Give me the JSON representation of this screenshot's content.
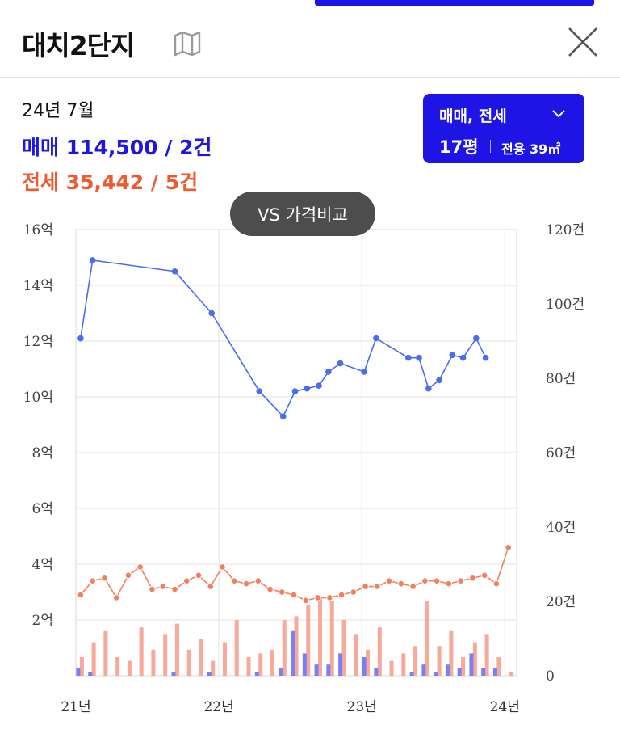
{
  "header": {
    "title": "대치2단지",
    "map_icon": "map-icon",
    "close_icon": "close-icon"
  },
  "summary": {
    "date": "24년 7월",
    "sale": "매매 114,500 / 2건",
    "jeonse": "전세 35,442 / 5건"
  },
  "filter": {
    "type": "매매, 전세",
    "pyeong": "17평",
    "area": "전용 39㎡"
  },
  "vs_button": "VS 가격비교",
  "colors": {
    "accent": "#1d14e6",
    "sale_line": "#4a6cf0",
    "jeonse_line": "#f08060",
    "jeonse_text": "#f0592e",
    "sale_bar": "#7b7ff5",
    "jeonse_bar": "#f7a99a"
  },
  "chart_data": {
    "type": "line",
    "x_unit": "month index from 21년 1월 (0–36)",
    "x_ticks": [
      {
        "x": 0,
        "label": "21년"
      },
      {
        "x": 12,
        "label": "22년"
      },
      {
        "x": 24,
        "label": "23년"
      },
      {
        "x": 36,
        "label": "24년"
      }
    ],
    "y_left": {
      "ticks": [
        "16억",
        "14억",
        "12억",
        "10억",
        "8억",
        "6억",
        "4억",
        "2억"
      ],
      "range": [
        0,
        16
      ]
    },
    "y_right": {
      "ticks": [
        "120건",
        "100건",
        "80건",
        "60건",
        "40건",
        "20건",
        "0"
      ],
      "range": [
        0,
        120
      ]
    },
    "series": [
      {
        "name": "매매",
        "values": [
          [
            0.4,
            12.1
          ],
          [
            1.4,
            14.9
          ],
          [
            8.3,
            14.5
          ],
          [
            11.4,
            13.0
          ],
          [
            15.4,
            10.2
          ],
          [
            17.4,
            9.3
          ],
          [
            18.4,
            10.2
          ],
          [
            19.4,
            10.3
          ],
          [
            20.4,
            10.4
          ],
          [
            21.2,
            10.9
          ],
          [
            22.2,
            11.2
          ],
          [
            24.2,
            10.9
          ],
          [
            25.2,
            12.1
          ],
          [
            27.9,
            11.4
          ],
          [
            28.8,
            11.4
          ],
          [
            29.6,
            10.3
          ],
          [
            30.5,
            10.6
          ],
          [
            31.6,
            11.5
          ],
          [
            32.5,
            11.4
          ],
          [
            33.6,
            12.1
          ],
          [
            34.4,
            11.4
          ]
        ]
      },
      {
        "name": "전세",
        "values": [
          [
            0.4,
            2.9
          ],
          [
            1.4,
            3.4
          ],
          [
            2.4,
            3.5
          ],
          [
            3.4,
            2.8
          ],
          [
            4.4,
            3.6
          ],
          [
            5.4,
            3.9
          ],
          [
            6.4,
            3.1
          ],
          [
            7.3,
            3.2
          ],
          [
            8.3,
            3.1
          ],
          [
            9.3,
            3.4
          ],
          [
            10.3,
            3.6
          ],
          [
            11.3,
            3.2
          ],
          [
            12.3,
            3.9
          ],
          [
            13.3,
            3.4
          ],
          [
            14.3,
            3.3
          ],
          [
            15.3,
            3.4
          ],
          [
            16.3,
            3.1
          ],
          [
            17.3,
            3.0
          ],
          [
            18.3,
            2.9
          ],
          [
            19.3,
            2.7
          ],
          [
            20.3,
            2.8
          ],
          [
            21.3,
            2.8
          ],
          [
            22.3,
            2.9
          ],
          [
            23.3,
            3.0
          ],
          [
            24.3,
            3.2
          ],
          [
            25.3,
            3.2
          ],
          [
            26.3,
            3.4
          ],
          [
            27.3,
            3.3
          ],
          [
            28.3,
            3.2
          ],
          [
            29.3,
            3.4
          ],
          [
            30.3,
            3.4
          ],
          [
            31.3,
            3.3
          ],
          [
            32.3,
            3.4
          ],
          [
            33.3,
            3.5
          ],
          [
            34.3,
            3.6
          ],
          [
            35.3,
            3.3
          ],
          [
            36.3,
            4.6
          ]
        ]
      }
    ],
    "bars_sale": [
      [
        0.2,
        2
      ],
      [
        1.2,
        1
      ],
      [
        8.2,
        1
      ],
      [
        11.2,
        1
      ],
      [
        15.2,
        1
      ],
      [
        17.2,
        2
      ],
      [
        18.2,
        12
      ],
      [
        19.2,
        6
      ],
      [
        20.2,
        3
      ],
      [
        21.2,
        3
      ],
      [
        22.2,
        6
      ],
      [
        24.2,
        5
      ],
      [
        25.2,
        2
      ],
      [
        28.2,
        1
      ],
      [
        29.2,
        3
      ],
      [
        30.2,
        1
      ],
      [
        31.2,
        3
      ],
      [
        32.2,
        2
      ],
      [
        33.2,
        6
      ],
      [
        34.2,
        2
      ],
      [
        35.2,
        2
      ]
    ],
    "bars_jeonse": [
      [
        0.5,
        5
      ],
      [
        1.5,
        9
      ],
      [
        2.5,
        12
      ],
      [
        3.5,
        5
      ],
      [
        4.5,
        4
      ],
      [
        5.5,
        13
      ],
      [
        6.5,
        7
      ],
      [
        7.5,
        11
      ],
      [
        8.5,
        14
      ],
      [
        9.5,
        7
      ],
      [
        10.5,
        10
      ],
      [
        11.5,
        4
      ],
      [
        12.5,
        9
      ],
      [
        13.5,
        15
      ],
      [
        14.5,
        5
      ],
      [
        15.5,
        6
      ],
      [
        16.5,
        7
      ],
      [
        17.5,
        15
      ],
      [
        18.5,
        16
      ],
      [
        19.5,
        19
      ],
      [
        20.5,
        21
      ],
      [
        21.5,
        20
      ],
      [
        22.5,
        15
      ],
      [
        23.5,
        11
      ],
      [
        24.5,
        7
      ],
      [
        25.5,
        13
      ],
      [
        26.5,
        4
      ],
      [
        27.5,
        6
      ],
      [
        28.5,
        8
      ],
      [
        29.5,
        20
      ],
      [
        30.5,
        8
      ],
      [
        31.5,
        12
      ],
      [
        32.5,
        5
      ],
      [
        33.5,
        9
      ],
      [
        34.5,
        11
      ],
      [
        35.5,
        5
      ],
      [
        36.5,
        1
      ]
    ]
  }
}
